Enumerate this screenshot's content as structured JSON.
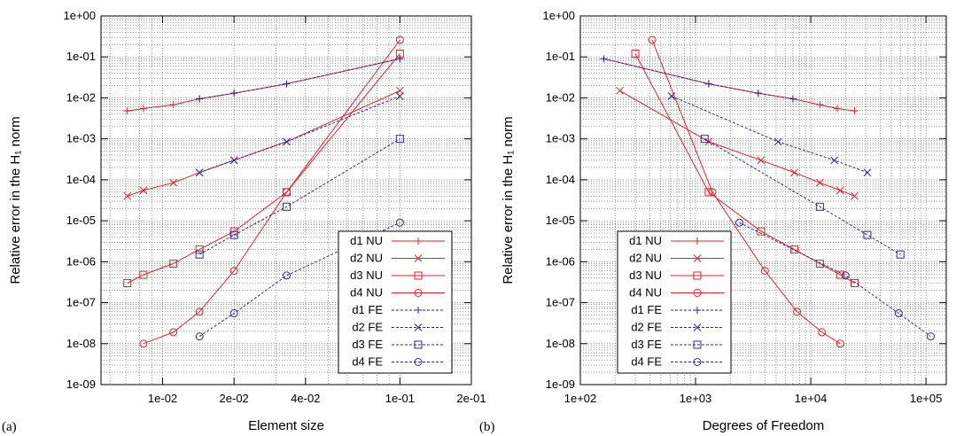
{
  "chart_data": [
    {
      "type": "line",
      "panel_label": "(a)",
      "xlabel": "Element size",
      "ylabel": "Relative error in the H₁ norm",
      "x_scale": "log",
      "y_scale": "log",
      "xlim": [
        0.0055,
        0.2
      ],
      "ylim": [
        1e-09,
        1
      ],
      "grid": true,
      "legend_position": "bottom-right",
      "x_ticks": [
        0.01,
        0.02,
        0.04,
        0.1,
        0.2
      ],
      "x_tick_labels": [
        "1e-02",
        "2e-02",
        "4e-02",
        "1e-01",
        "2e-01"
      ],
      "y_ticks": [
        1,
        0.1,
        0.01,
        0.001,
        0.0001,
        1e-05,
        1e-06,
        1e-07,
        1e-08,
        1e-09
      ],
      "y_tick_labels": [
        "1e+00",
        "1e-01",
        "1e-02",
        "1e-03",
        "1e-04",
        "1e-05",
        "1e-06",
        "1e-07",
        "1e-08",
        "1e-09"
      ],
      "series": [
        {
          "name": "d1 NU",
          "color": "#e8202a",
          "dashed": false,
          "marker": "plus",
          "x": [
            0.0071,
            0.0083,
            0.0111,
            0.0143,
            0.02,
            0.0333,
            0.1
          ],
          "y": [
            0.0048,
            0.0055,
            0.0068,
            0.0095,
            0.013,
            0.022,
            0.09
          ]
        },
        {
          "name": "d2 NU",
          "color": "#e8202a",
          "dashed": false,
          "marker": "x",
          "x": [
            0.0071,
            0.0083,
            0.0111,
            0.0143,
            0.02,
            0.0333,
            0.1
          ],
          "y": [
            4e-05,
            5.5e-05,
            8.5e-05,
            0.00015,
            0.0003,
            0.00085,
            0.015
          ]
        },
        {
          "name": "d3 NU",
          "color": "#e8202a",
          "dashed": false,
          "marker": "square",
          "x": [
            0.0071,
            0.0083,
            0.0111,
            0.0143,
            0.02,
            0.0333,
            0.1
          ],
          "y": [
            3e-07,
            4.8e-07,
            9e-07,
            2e-06,
            5.5e-06,
            5e-05,
            0.12
          ]
        },
        {
          "name": "d4 NU",
          "color": "#e8202a",
          "dashed": false,
          "marker": "circle",
          "x": [
            0.0083,
            0.0111,
            0.0143,
            0.02,
            0.0333,
            0.1
          ],
          "y": [
            1e-08,
            1.9e-08,
            6e-08,
            6e-07,
            5e-05,
            0.26
          ]
        },
        {
          "name": "d1 FE",
          "color": "#2c2a8c",
          "dashed": true,
          "marker": "plus",
          "x": [
            0.0143,
            0.02,
            0.0333,
            0.1
          ],
          "y": [
            0.0095,
            0.013,
            0.022,
            0.09
          ]
        },
        {
          "name": "d2 FE",
          "color": "#2c2a8c",
          "dashed": true,
          "marker": "x",
          "x": [
            0.0143,
            0.02,
            0.0333,
            0.1
          ],
          "y": [
            0.00015,
            0.0003,
            0.00085,
            0.011
          ]
        },
        {
          "name": "d3 FE",
          "color": "#2c2a8c",
          "dashed": true,
          "marker": "square",
          "x": [
            0.0143,
            0.02,
            0.0333,
            0.1
          ],
          "y": [
            1.5e-06,
            4.5e-06,
            2.2e-05,
            0.001
          ]
        },
        {
          "name": "d4 FE",
          "color": "#2c2a8c",
          "dashed": true,
          "marker": "circle",
          "x": [
            0.0143,
            0.02,
            0.0333,
            0.1
          ],
          "y": [
            1.5e-08,
            5.5e-08,
            4.6e-07,
            9e-06
          ]
        }
      ]
    },
    {
      "type": "line",
      "panel_label": "(b)",
      "xlabel": "Degrees of Freedom",
      "ylabel": "Relative error in the H₁ norm",
      "x_scale": "log",
      "y_scale": "log",
      "xlim": [
        100,
        150000
      ],
      "ylim": [
        1e-09,
        1
      ],
      "grid": true,
      "legend_position": "bottom-left",
      "x_ticks": [
        100,
        1000,
        10000,
        100000
      ],
      "x_tick_labels": [
        "1e+02",
        "1e+03",
        "1e+04",
        "1e+05"
      ],
      "y_ticks": [
        1,
        0.1,
        0.01,
        0.001,
        0.0001,
        1e-05,
        1e-06,
        1e-07,
        1e-08,
        1e-09
      ],
      "y_tick_labels": [
        "1e+00",
        "1e-01",
        "1e-02",
        "1e-03",
        "1e-04",
        "1e-05",
        "1e-06",
        "1e-07",
        "1e-08",
        "1e-09"
      ],
      "series": [
        {
          "name": "d1 NU",
          "color": "#e8202a",
          "dashed": false,
          "marker": "plus",
          "x": [
            160,
            1300,
            3500,
            7000,
            12000,
            17000,
            24000
          ],
          "y": [
            0.09,
            0.022,
            0.013,
            0.0095,
            0.0068,
            0.0055,
            0.0048
          ]
        },
        {
          "name": "d2 NU",
          "color": "#e8202a",
          "dashed": false,
          "marker": "x",
          "x": [
            220,
            1300,
            3700,
            7200,
            12000,
            18000,
            24000
          ],
          "y": [
            0.015,
            0.00085,
            0.0003,
            0.00015,
            8.5e-05,
            5.5e-05,
            4e-05
          ]
        },
        {
          "name": "d3 NU",
          "color": "#e8202a",
          "dashed": false,
          "marker": "square",
          "x": [
            300,
            1300,
            3700,
            7200,
            12000,
            18000,
            24000
          ],
          "y": [
            0.12,
            5e-05,
            5.5e-06,
            2e-06,
            9e-07,
            4.8e-07,
            3e-07
          ]
        },
        {
          "name": "d4 NU",
          "color": "#e8202a",
          "dashed": false,
          "marker": "circle",
          "x": [
            420,
            1400,
            4000,
            7600,
            12500,
            18000
          ],
          "y": [
            0.26,
            5e-05,
            6e-07,
            6e-08,
            1.9e-08,
            1e-08
          ]
        },
        {
          "name": "d1 FE",
          "color": "#2c2a8c",
          "dashed": true,
          "marker": "plus",
          "x": [
            160,
            1300,
            3500,
            7000
          ],
          "y": [
            0.09,
            0.022,
            0.013,
            0.0095
          ]
        },
        {
          "name": "d2 FE",
          "color": "#2c2a8c",
          "dashed": true,
          "marker": "x",
          "x": [
            620,
            5200,
            16000,
            31000
          ],
          "y": [
            0.011,
            0.00085,
            0.0003,
            0.00015
          ]
        },
        {
          "name": "d3 FE",
          "color": "#2c2a8c",
          "dashed": true,
          "marker": "square",
          "x": [
            1200,
            12000,
            31000,
            60000
          ],
          "y": [
            0.001,
            2.2e-05,
            4.5e-06,
            1.5e-06
          ]
        },
        {
          "name": "d4 FE",
          "color": "#2c2a8c",
          "dashed": true,
          "marker": "circle",
          "x": [
            2400,
            20000,
            58000,
            110000
          ],
          "y": [
            9e-06,
            4.6e-07,
            5.5e-08,
            1.5e-08
          ]
        }
      ]
    }
  ]
}
